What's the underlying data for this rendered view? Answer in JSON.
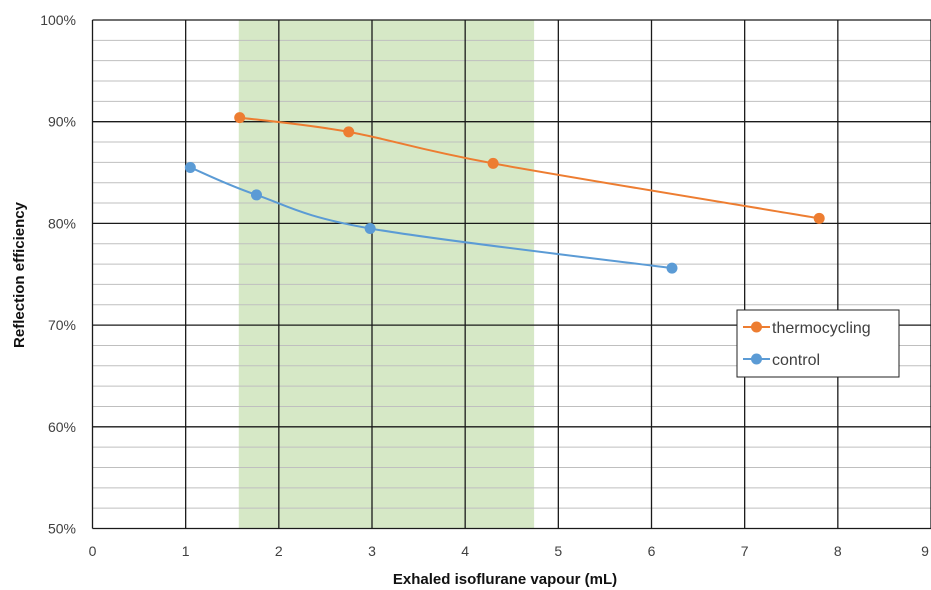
{
  "chart_data": {
    "type": "line",
    "xlabel": "Exhaled isoflurane vapour (mL)",
    "ylabel": "Reflection efficiency",
    "xlim": [
      0,
      9
    ],
    "ylim": [
      50,
      100
    ],
    "x_ticks": [
      "0",
      "1",
      "2",
      "3",
      "4",
      "5",
      "6",
      "7",
      "8",
      "9"
    ],
    "y_ticks": [
      "50%",
      "60%",
      "70%",
      "80%",
      "90%",
      "100%"
    ],
    "grid": true,
    "shaded_region": {
      "x_start": 1.57,
      "x_end": 4.74,
      "color": "#d6e8c6"
    },
    "legend": {
      "position": "right"
    },
    "series": [
      {
        "name": "thermocycling",
        "color": "#ed7d31",
        "points": [
          {
            "x": 1.58,
            "y": 90.4
          },
          {
            "x": 2.75,
            "y": 89.0
          },
          {
            "x": 4.3,
            "y": 85.9
          },
          {
            "x": 7.8,
            "y": 80.5
          }
        ]
      },
      {
        "name": "control",
        "color": "#5b9bd5",
        "points": [
          {
            "x": 1.05,
            "y": 85.5
          },
          {
            "x": 1.76,
            "y": 82.8
          },
          {
            "x": 2.98,
            "y": 79.5
          },
          {
            "x": 6.22,
            "y": 75.6
          }
        ]
      }
    ]
  }
}
